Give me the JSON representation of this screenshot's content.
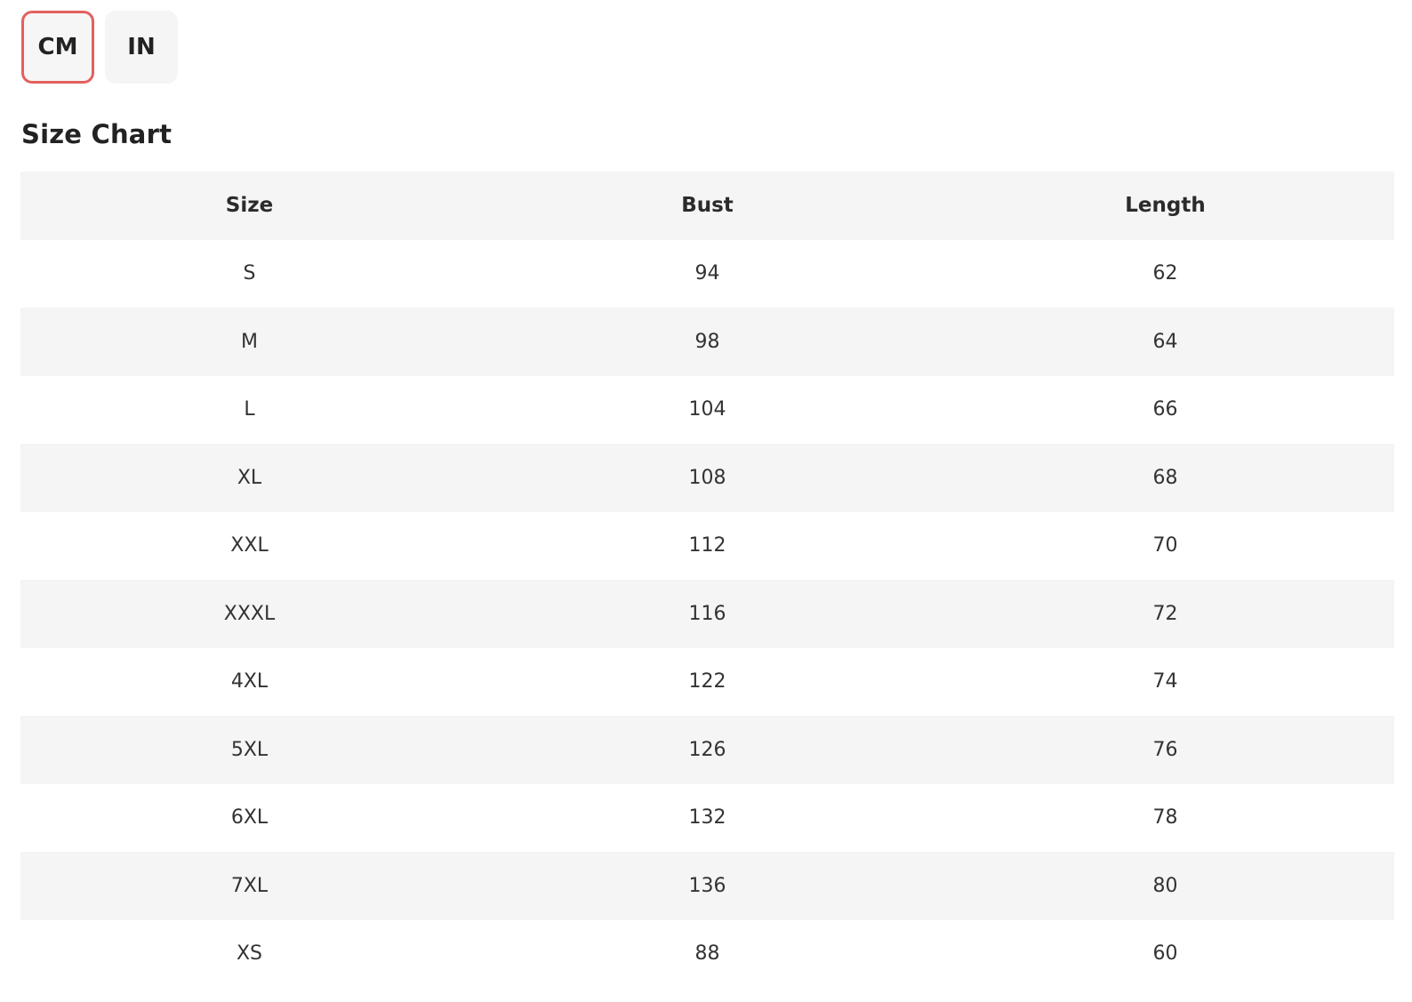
{
  "units": {
    "cm_label": "CM",
    "in_label": "IN",
    "selected": "CM"
  },
  "title": "Size Chart",
  "table": {
    "headers": [
      "Size",
      "Bust",
      "Length"
    ],
    "rows": [
      [
        "S",
        "94",
        "62"
      ],
      [
        "M",
        "98",
        "64"
      ],
      [
        "L",
        "104",
        "66"
      ],
      [
        "XL",
        "108",
        "68"
      ],
      [
        "XXL",
        "112",
        "70"
      ],
      [
        "XXXL",
        "116",
        "72"
      ],
      [
        "4XL",
        "122",
        "74"
      ],
      [
        "5XL",
        "126",
        "76"
      ],
      [
        "6XL",
        "132",
        "78"
      ],
      [
        "7XL",
        "136",
        "80"
      ],
      [
        "XS",
        "88",
        "60"
      ]
    ]
  },
  "colors": {
    "active_border": "#e36060",
    "stripe": "#f5f5f5",
    "text": "#222222"
  }
}
